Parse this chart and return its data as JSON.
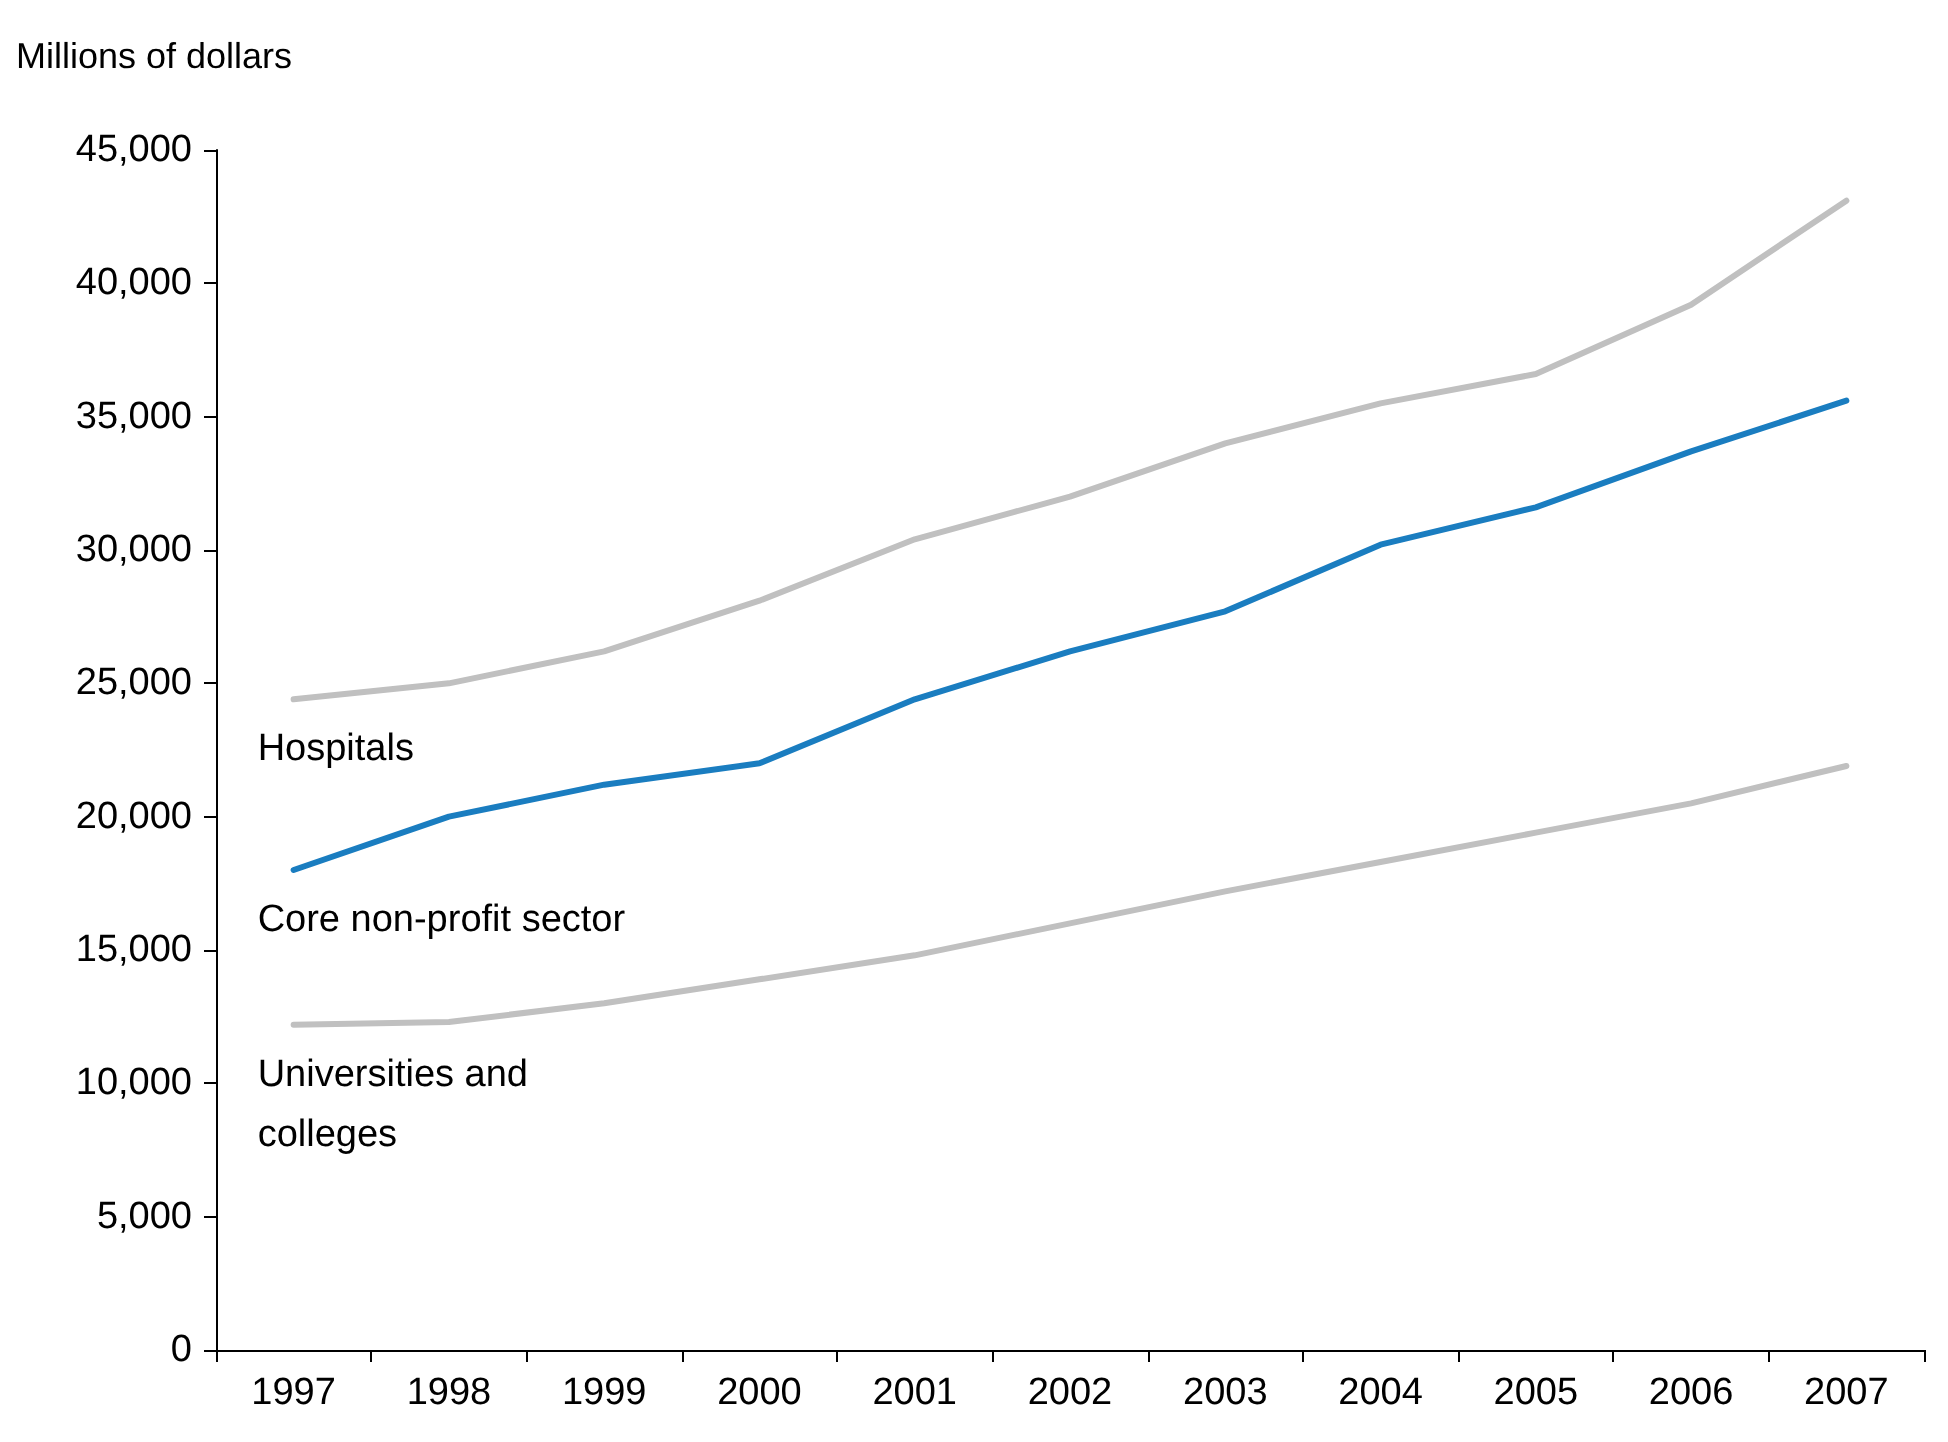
{
  "chart_data": {
    "type": "line",
    "ylabel": "Millions of dollars",
    "categories": [
      "1997",
      "1998",
      "1999",
      "2000",
      "2001",
      "2002",
      "2003",
      "2004",
      "2005",
      "2006",
      "2007"
    ],
    "series": [
      {
        "name": "Hospitals",
        "color": "#c0c0c0",
        "values": [
          24400,
          25000,
          26200,
          28100,
          30400,
          32000,
          34000,
          35500,
          36600,
          39200,
          43100
        ]
      },
      {
        "name": "Core non-profit sector",
        "color": "#1a7dc0",
        "values": [
          18000,
          20000,
          21200,
          22000,
          24400,
          26200,
          27700,
          30200,
          31600,
          33700,
          35600
        ]
      },
      {
        "name": "Universities and colleges",
        "color": "#c0c0c0",
        "values": [
          12200,
          12300,
          13000,
          13900,
          14800,
          16000,
          17200,
          18300,
          19400,
          20500,
          21900
        ]
      }
    ],
    "ylim": [
      0,
      45000
    ],
    "yticks": [
      0,
      {
        "value": 5000,
        "label": "5,000"
      },
      {
        "value": 10000,
        "label": "10,000"
      },
      {
        "value": 15000,
        "label": "15,000"
      },
      {
        "value": 20000,
        "label": "20,000"
      },
      {
        "value": 25000,
        "label": "25,000"
      },
      {
        "value": 30000,
        "label": "30,000"
      },
      {
        "value": 35000,
        "label": "35,000"
      },
      {
        "value": 40000,
        "label": "40,000"
      },
      {
        "value": 45000,
        "label": "45,000"
      }
    ],
    "grid": false,
    "legend": false,
    "marker": "none",
    "line_style": "solid"
  }
}
